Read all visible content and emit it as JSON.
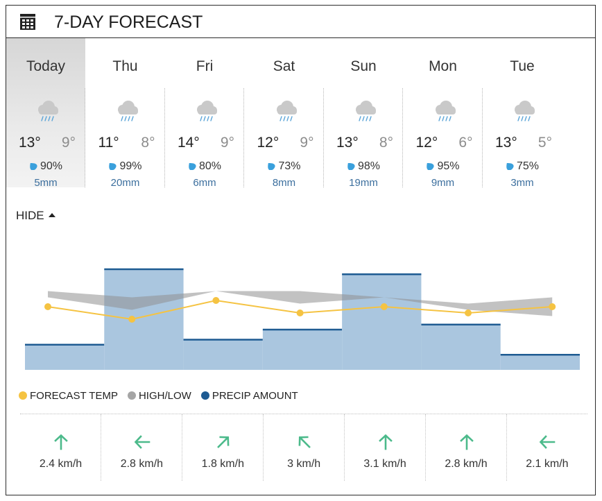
{
  "header": {
    "title": "7-DAY FORECAST",
    "icon": "calendar-icon"
  },
  "days": [
    {
      "name": "Today",
      "icon": "rain-cloud-icon",
      "high": "13°",
      "low": "9°",
      "pop": "90%",
      "precip": "5mm"
    },
    {
      "name": "Thu",
      "icon": "rain-cloud-icon",
      "high": "11°",
      "low": "8°",
      "pop": "99%",
      "precip": "20mm"
    },
    {
      "name": "Fri",
      "icon": "rain-cloud-icon",
      "high": "14°",
      "low": "9°",
      "pop": "80%",
      "precip": "6mm"
    },
    {
      "name": "Sat",
      "icon": "rain-cloud-icon",
      "high": "12°",
      "low": "9°",
      "pop": "73%",
      "precip": "8mm"
    },
    {
      "name": "Sun",
      "icon": "rain-cloud-icon",
      "high": "13°",
      "low": "8°",
      "pop": "98%",
      "precip": "19mm"
    },
    {
      "name": "Mon",
      "icon": "rain-cloud-icon",
      "high": "12°",
      "low": "6°",
      "pop": "95%",
      "precip": "9mm"
    },
    {
      "name": "Tue",
      "icon": "rain-cloud-icon",
      "high": "13°",
      "low": "5°",
      "pop": "75%",
      "precip": "3mm"
    }
  ],
  "toggle": {
    "label": "HIDE"
  },
  "chart_data": {
    "type": "bar",
    "categories": [
      "Today",
      "Thu",
      "Fri",
      "Sat",
      "Sun",
      "Mon",
      "Tue"
    ],
    "series": [
      {
        "name": "FORECAST TEMP",
        "kind": "line",
        "values": [
          13,
          11,
          14,
          12,
          13,
          12,
          13
        ]
      },
      {
        "name": "HIGH/LOW",
        "kind": "band",
        "high": [
          13,
          11,
          14,
          12,
          13,
          12,
          13
        ],
        "low": [
          9,
          8,
          9,
          9,
          8,
          6,
          5
        ]
      },
      {
        "name": "PRECIP AMOUNT",
        "kind": "step-bar",
        "unit": "mm",
        "values": [
          5,
          20,
          6,
          8,
          19,
          9,
          3
        ]
      }
    ],
    "legend_position": "bottom-left",
    "grid": false,
    "colors": {
      "temp": "#f5c342",
      "band": "#8f8f8f",
      "precip_fill": "#aac6df",
      "precip_line": "#1e5b92"
    }
  },
  "legend": [
    {
      "label": "FORECAST TEMP",
      "color": "#f5c342"
    },
    {
      "label": "HIGH/LOW",
      "color": "#a5a5a5"
    },
    {
      "label": "PRECIP AMOUNT",
      "color": "#1e5b92"
    }
  ],
  "wind": [
    {
      "speed": "2.4 km/h",
      "direction": "N",
      "arrow_deg": 0
    },
    {
      "speed": "2.8 km/h",
      "direction": "W",
      "arrow_deg": -90
    },
    {
      "speed": "1.8 km/h",
      "direction": "NE",
      "arrow_deg": 45
    },
    {
      "speed": "3 km/h",
      "direction": "NW",
      "arrow_deg": -45
    },
    {
      "speed": "3.1 km/h",
      "direction": "N",
      "arrow_deg": 0
    },
    {
      "speed": "2.8 km/h",
      "direction": "N",
      "arrow_deg": 0
    },
    {
      "speed": "2.1 km/h",
      "direction": "W",
      "arrow_deg": -90
    }
  ]
}
